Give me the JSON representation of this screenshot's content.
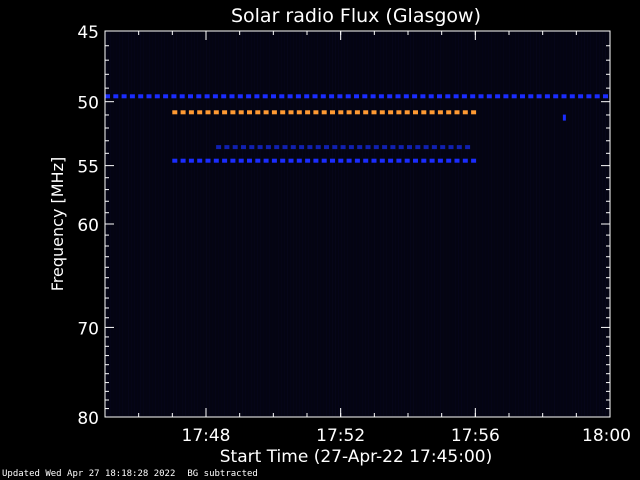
{
  "chart_data": {
    "type": "heatmap",
    "title": "Solar radio Flux (Glasgow)",
    "xlabel": "Start Time (27-Apr-22 17:45:00)",
    "ylabel": "Frequency [MHz]",
    "x_ticks": [
      "17:48",
      "17:52",
      "17:56",
      "18:00"
    ],
    "x_range": [
      "17:45",
      "18:00"
    ],
    "y_ticks": [
      45,
      50,
      55,
      60,
      70,
      80
    ],
    "y_range": [
      45,
      80
    ],
    "y_scale": "log",
    "bands": [
      {
        "frequency_mhz": 49.6,
        "start": "17:45",
        "end": "18:00",
        "color": "#1a2cff",
        "style": "dashed"
      },
      {
        "frequency_mhz": 50.8,
        "start": "17:47",
        "end": "17:56",
        "color": "#ff9a33",
        "style": "dashed"
      },
      {
        "frequency_mhz": 53.5,
        "start": "17:48.3",
        "end": "17:56",
        "color": "#1020b0",
        "style": "dashed"
      },
      {
        "frequency_mhz": 54.6,
        "start": "17:47",
        "end": "17:56",
        "color": "#1a2cff",
        "style": "dashed"
      },
      {
        "frequency_mhz": 51.2,
        "start": "17:58.6",
        "end": "17:58.7",
        "color": "#1a2cff",
        "style": "dot"
      }
    ],
    "background_color": "#040412",
    "text_color": "#ffffff"
  },
  "footer": {
    "updated": "Updated Wed Apr 27 18:18:28 2022",
    "note": "BG subtracted"
  }
}
